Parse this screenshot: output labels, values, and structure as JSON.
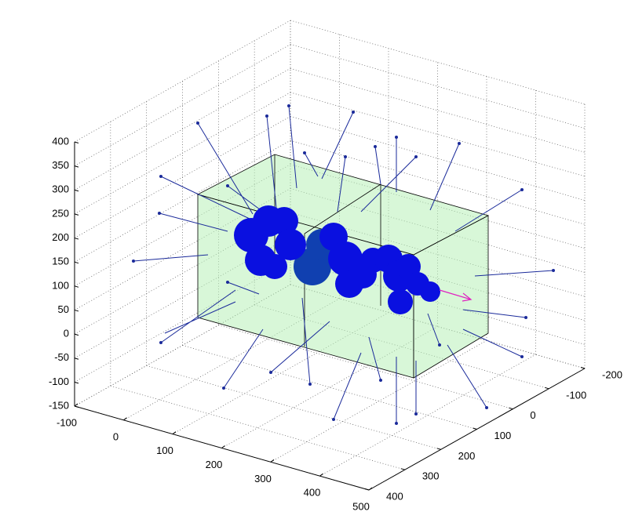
{
  "chart_data": {
    "type": "quiver3d",
    "xlim": [
      -100,
      500
    ],
    "xticks": [
      -100,
      0,
      100,
      200,
      300,
      400,
      500
    ],
    "ylim": [
      -200,
      400
    ],
    "yticks": [
      -200,
      -100,
      0,
      100,
      200,
      300,
      400
    ],
    "zlim": [
      -150,
      400
    ],
    "zticks": [
      -150,
      -100,
      -50,
      0,
      50,
      100,
      150,
      200,
      250,
      300,
      350,
      400
    ],
    "grid": true
  }
}
